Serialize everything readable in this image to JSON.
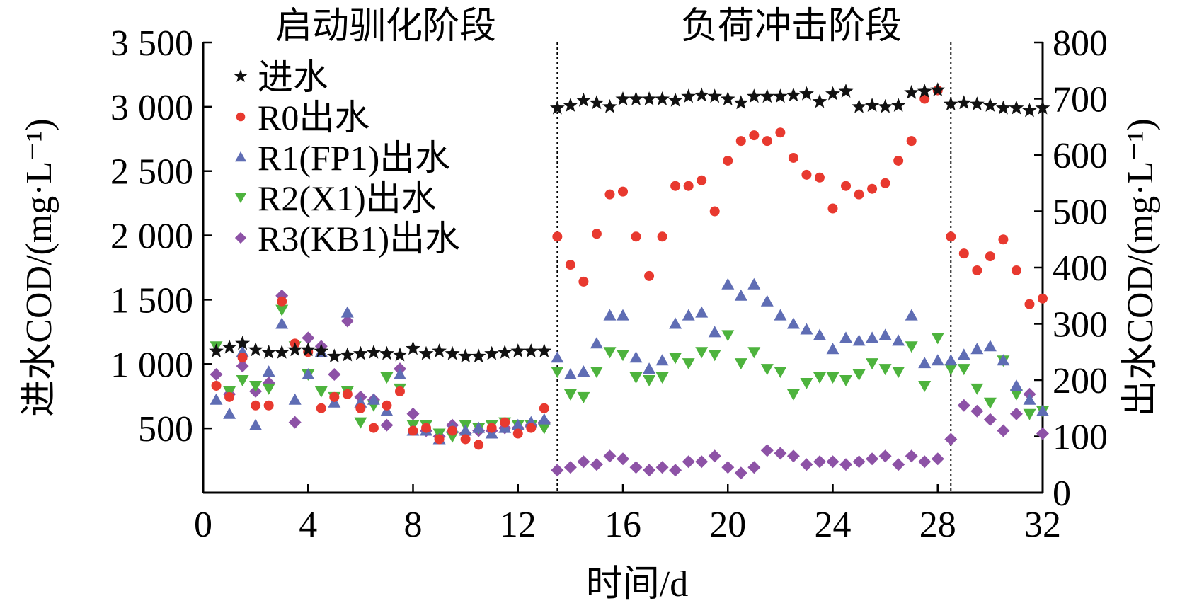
{
  "chart_data": {
    "type": "scatter",
    "xlabel": "时间/d",
    "ylabel_left": "进水COD/(mg·L⁻¹)",
    "ylabel_right": "出水COD/(mg·L⁻¹)",
    "xlim": [
      0,
      32
    ],
    "ylim_left": [
      0,
      3500
    ],
    "ylim_right": [
      0,
      800
    ],
    "x_ticks": [
      "0",
      "4",
      "8",
      "12",
      "16",
      "20",
      "24",
      "28",
      "32"
    ],
    "y_left_ticks": [
      "500",
      "1 000",
      "1 500",
      "2 000",
      "2 500",
      "3 000",
      "3 500"
    ],
    "y_right_ticks": [
      "0",
      "100",
      "200",
      "300",
      "400",
      "500",
      "600",
      "700",
      "800"
    ],
    "grid": false,
    "legend_position": "top-left",
    "phase_labels": [
      "启动驯化阶段",
      "负荷冲击阶段"
    ],
    "phase_boundaries_x": [
      13.5,
      28.5
    ],
    "series": [
      {
        "name": "进水",
        "marker": "star",
        "color": "#111111",
        "axis": "left",
        "x": [
          0.5,
          1,
          1.5,
          2,
          2.5,
          3,
          3.5,
          4,
          4.5,
          5,
          5.5,
          6,
          6.5,
          7,
          7.5,
          8,
          8.5,
          9,
          9.5,
          10,
          10.5,
          11,
          11.5,
          12,
          12.5,
          13,
          13.5,
          14,
          14.5,
          15,
          15.5,
          16,
          16.5,
          17,
          17.5,
          18,
          18.5,
          19,
          19.5,
          20,
          20.5,
          21,
          21.5,
          22,
          22.5,
          23,
          23.5,
          24,
          24.5,
          25,
          25.5,
          26,
          26.5,
          27,
          27.5,
          28,
          28.5,
          29,
          29.5,
          30,
          30.5,
          31,
          31.5,
          32
        ],
        "y": [
          1100,
          1130,
          1160,
          1110,
          1090,
          1090,
          1110,
          1110,
          1100,
          1060,
          1070,
          1080,
          1090,
          1080,
          1070,
          1120,
          1080,
          1100,
          1080,
          1060,
          1060,
          1080,
          1090,
          1100,
          1100,
          1100,
          2990,
          3010,
          3050,
          3030,
          3000,
          3060,
          3060,
          3060,
          3060,
          3050,
          3080,
          3090,
          3080,
          3060,
          3030,
          3080,
          3080,
          3080,
          3090,
          3100,
          3040,
          3100,
          3120,
          3000,
          3010,
          3000,
          3010,
          3110,
          3120,
          3130,
          3020,
          3030,
          3020,
          3010,
          2990,
          2990,
          2970,
          2990
        ]
      },
      {
        "name": "R0出水",
        "marker": "circle",
        "color": "#e8392f",
        "axis": "right",
        "x": [
          0.5,
          1,
          1.5,
          2,
          2.5,
          3,
          3.5,
          4,
          4.5,
          5,
          5.5,
          6,
          6.5,
          7,
          7.5,
          8,
          8.5,
          9,
          9.5,
          10,
          10.5,
          11,
          11.5,
          12,
          12.5,
          13,
          13.5,
          14,
          14.5,
          15,
          15.5,
          16,
          16.5,
          17,
          17.5,
          18,
          18.5,
          19,
          19.5,
          20,
          20.5,
          21,
          21.5,
          22,
          22.5,
          23,
          23.5,
          24,
          24.5,
          25,
          25.5,
          26,
          26.5,
          27,
          27.5,
          28,
          28.5,
          29,
          29.5,
          30,
          30.5,
          31,
          31.5,
          32
        ],
        "y": [
          190,
          170,
          240,
          155,
          155,
          340,
          265,
          250,
          150,
          170,
          175,
          150,
          115,
          155,
          180,
          110,
          115,
          95,
          110,
          95,
          85,
          115,
          125,
          105,
          115,
          150,
          455,
          405,
          375,
          460,
          530,
          535,
          455,
          385,
          455,
          545,
          545,
          555,
          500,
          590,
          625,
          635,
          625,
          640,
          595,
          565,
          560,
          505,
          545,
          530,
          540,
          550,
          590,
          625,
          700,
          715,
          455,
          425,
          395,
          420,
          450,
          395,
          335,
          345
        ]
      },
      {
        "name": "R1(FP1)出水",
        "marker": "triangle-up",
        "color": "#5f6db4",
        "axis": "right",
        "x": [
          0.5,
          1,
          1.5,
          2,
          2.5,
          3,
          3.5,
          4,
          4.5,
          5,
          5.5,
          6,
          6.5,
          7,
          7.5,
          8,
          8.5,
          9,
          9.5,
          10,
          10.5,
          11,
          11.5,
          12,
          12.5,
          13,
          13.5,
          14,
          14.5,
          15,
          15.5,
          16,
          16.5,
          17,
          17.5,
          18,
          18.5,
          19,
          19.5,
          20,
          20.5,
          21,
          21.5,
          22,
          22.5,
          23,
          23.5,
          24,
          24.5,
          25,
          25.5,
          26,
          26.5,
          27,
          27.5,
          28,
          28.5,
          29,
          29.5,
          30,
          30.5,
          31,
          31.5,
          32
        ],
        "y": [
          165,
          140,
          250,
          120,
          215,
          300,
          165,
          210,
          250,
          160,
          320,
          160,
          165,
          145,
          210,
          110,
          110,
          95,
          115,
          110,
          115,
          105,
          115,
          120,
          125,
          130,
          240,
          210,
          215,
          265,
          315,
          315,
          240,
          220,
          235,
          300,
          315,
          320,
          285,
          370,
          350,
          370,
          340,
          315,
          300,
          290,
          280,
          255,
          275,
          270,
          275,
          280,
          270,
          315,
          230,
          235,
          235,
          245,
          255,
          260,
          235,
          190,
          165,
          145
        ]
      },
      {
        "name": "R2(X1)出水",
        "marker": "triangle-down",
        "color": "#4db33d",
        "axis": "right",
        "x": [
          0.5,
          1,
          1.5,
          2,
          2.5,
          3,
          3.5,
          4,
          4.5,
          5,
          5.5,
          6,
          6.5,
          7,
          7.5,
          8,
          8.5,
          9,
          9.5,
          10,
          10.5,
          11,
          11.5,
          12,
          12.5,
          13,
          13.5,
          14,
          14.5,
          15,
          15.5,
          16,
          16.5,
          17,
          17.5,
          18,
          18.5,
          19,
          19.5,
          20,
          20.5,
          21,
          21.5,
          22,
          22.5,
          23,
          23.5,
          24,
          24.5,
          25,
          25.5,
          26,
          26.5,
          27,
          27.5,
          28,
          28.5,
          29,
          29.5,
          30,
          30.5,
          31,
          31.5,
          32
        ],
        "y": [
          260,
          180,
          200,
          190,
          185,
          325,
          260,
          210,
          180,
          170,
          180,
          125,
          155,
          205,
          185,
          120,
          120,
          105,
          100,
          120,
          115,
          120,
          125,
          120,
          120,
          115,
          215,
          175,
          170,
          215,
          250,
          245,
          205,
          200,
          205,
          240,
          230,
          250,
          245,
          280,
          230,
          250,
          220,
          215,
          175,
          195,
          205,
          205,
          200,
          210,
          230,
          220,
          215,
          260,
          190,
          275,
          220,
          220,
          185,
          160,
          235,
          175,
          140,
          145
        ]
      },
      {
        "name": "R3(KB1)出水",
        "marker": "diamond",
        "color": "#8d52a6",
        "axis": "right",
        "x": [
          0.5,
          1,
          1.5,
          2,
          2.5,
          3,
          3.5,
          4,
          4.5,
          5,
          5.5,
          6,
          6.5,
          7,
          7.5,
          8,
          8.5,
          9,
          9.5,
          10,
          10.5,
          11,
          11.5,
          12,
          12.5,
          13,
          13.5,
          14,
          14.5,
          15,
          15.5,
          16,
          16.5,
          17,
          17.5,
          18,
          18.5,
          19,
          19.5,
          20,
          20.5,
          21,
          21.5,
          22,
          22.5,
          23,
          23.5,
          24,
          24.5,
          25,
          25.5,
          26,
          26.5,
          27,
          27.5,
          28,
          28.5,
          29,
          29.5,
          30,
          30.5,
          31,
          31.5,
          32
        ],
        "y": [
          210,
          175,
          225,
          180,
          195,
          350,
          125,
          275,
          260,
          210,
          305,
          170,
          165,
          120,
          220,
          140,
          110,
          100,
          120,
          105,
          110,
          110,
          115,
          115,
          120,
          125,
          40,
          45,
          55,
          50,
          65,
          60,
          45,
          40,
          45,
          40,
          55,
          55,
          65,
          45,
          35,
          45,
          75,
          70,
          65,
          50,
          55,
          55,
          50,
          55,
          60,
          65,
          50,
          65,
          55,
          60,
          95,
          155,
          145,
          130,
          110,
          140,
          175,
          105
        ]
      }
    ]
  }
}
